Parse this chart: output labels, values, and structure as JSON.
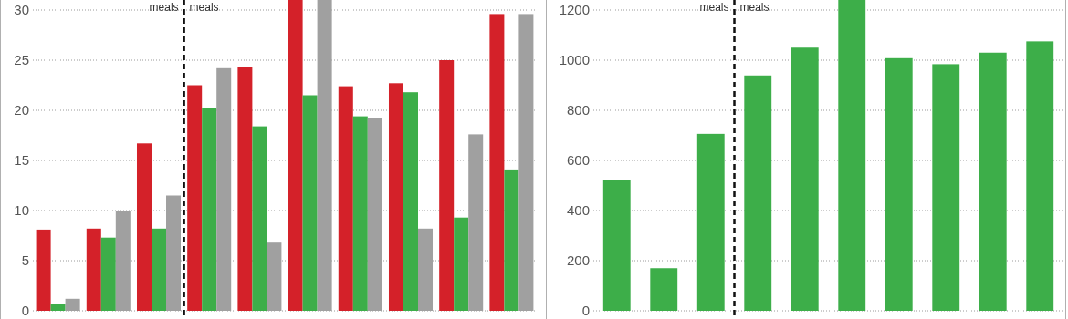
{
  "chart_data": [
    {
      "type": "bar",
      "categories": [
        null,
        null,
        null,
        null,
        null,
        null,
        null,
        null,
        null,
        null
      ],
      "series": [
        {
          "color": "#d42129",
          "values": [
            8.1,
            8.2,
            16.7,
            22.5,
            24.3,
            31,
            22.4,
            22.7,
            25.0,
            29.6
          ]
        },
        {
          "color": "#3dae49",
          "values": [
            0.7,
            7.3,
            8.2,
            20.2,
            18.4,
            21.5,
            19.4,
            21.8,
            9.3,
            14.1
          ]
        },
        {
          "color": "#a0a0a0",
          "values": [
            1.2,
            10,
            11.5,
            24.2,
            6.8,
            31,
            19.2,
            8.2,
            17.6,
            29.6
          ]
        }
      ],
      "ylim": [
        0,
        31
      ],
      "yticks": [
        0,
        5,
        10,
        15,
        20,
        25,
        30
      ],
      "grid": "y",
      "tick_labels": "y",
      "annotations": [
        "meals",
        "meals"
      ]
    },
    {
      "type": "bar",
      "categories": [
        null,
        null,
        null,
        null,
        null,
        null,
        null,
        null,
        null,
        null
      ],
      "series": [
        {
          "color": "#3dae49",
          "values": [
            523,
            170,
            706,
            939,
            1050,
            1240,
            1008,
            984,
            1030,
            1075
          ]
        }
      ],
      "ylim": [
        0,
        1240
      ],
      "yticks": [
        0,
        200,
        400,
        600,
        800,
        1000,
        1200
      ],
      "grid": "y",
      "tick_labels": "y",
      "annotations": [
        "meals",
        "meals"
      ]
    }
  ]
}
